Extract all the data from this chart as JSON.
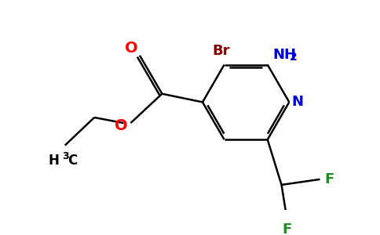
{
  "background_color": "#ffffff",
  "bond_color": "#000000",
  "atom_colors": {
    "Br": "#8b0000",
    "NH2": "#0000cc",
    "N": "#0000cc",
    "O": "#ff0000",
    "F": "#228b22",
    "C": "#000000",
    "H": "#000000"
  },
  "figsize": [
    4.84,
    3.0
  ],
  "dpi": 100,
  "lw": 1.8,
  "fontsize": 13
}
